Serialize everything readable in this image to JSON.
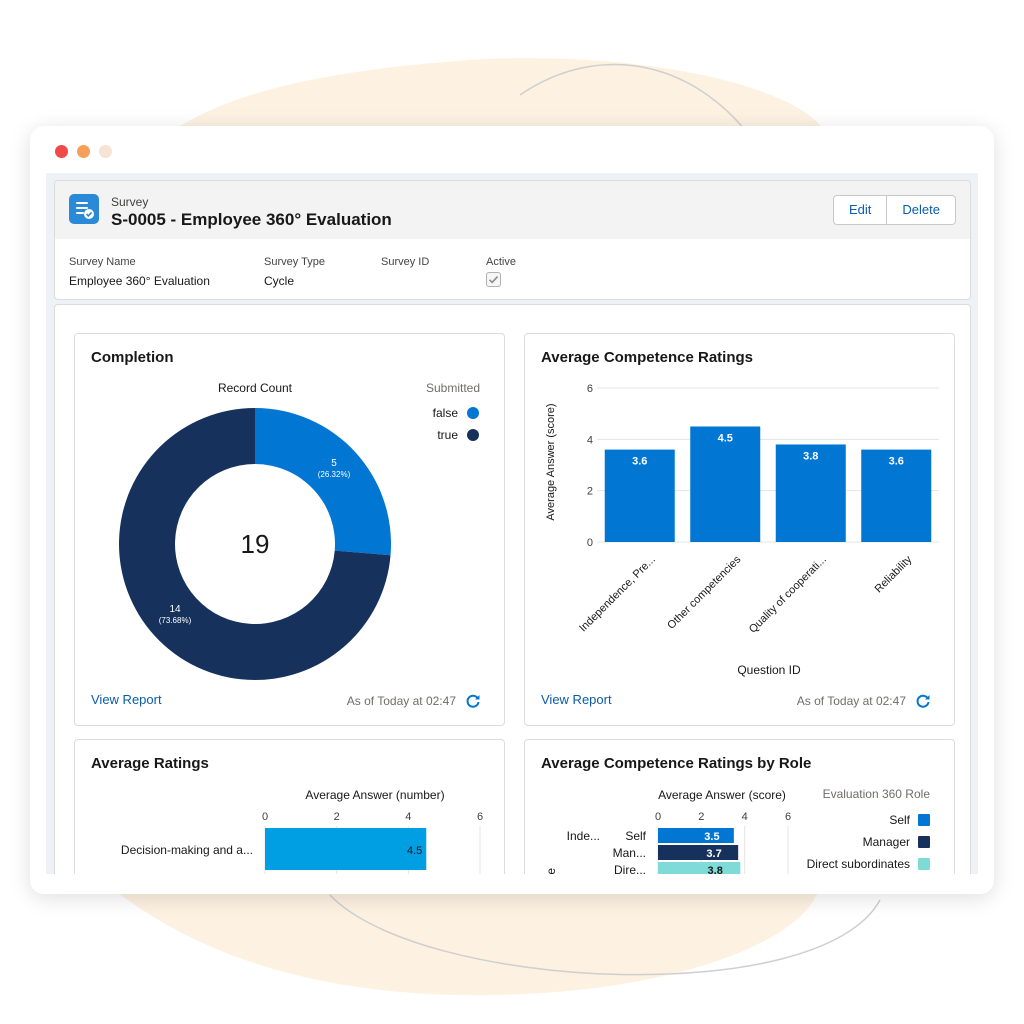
{
  "colors": {
    "accent": "#0176d3",
    "navy": "#16325c",
    "light_blue": "#009ee3",
    "teal": "#7fdbd7",
    "link": "#0b5cab",
    "blob": "#fdf3e7"
  },
  "record": {
    "kind": "Survey",
    "title": "S-0005 - Employee 360° Evaluation",
    "icon": "survey-icon",
    "buttons": {
      "edit": "Edit",
      "delete": "Delete"
    },
    "fields": [
      {
        "label": "Survey Name",
        "value": "Employee 360° Evaluation"
      },
      {
        "label": "Survey Type",
        "value": "Cycle"
      },
      {
        "label": "Survey ID",
        "value": ""
      },
      {
        "label": "Active",
        "checked": true
      }
    ]
  },
  "panels": {
    "completion": {
      "title": "Completion",
      "view_report": "View Report",
      "as_of": "As of Today at 02:47"
    },
    "competence": {
      "title": "Average Competence Ratings",
      "view_report": "View Report",
      "as_of": "As of Today at 02:47"
    },
    "ratings": {
      "title": "Average Ratings"
    },
    "by_role": {
      "title": "Average Competence Ratings by Role"
    }
  },
  "chart_data": [
    {
      "type": "pie",
      "title": "Record Count",
      "center_label": "19",
      "legend_title": "Submitted",
      "legend_position": "top-right",
      "categories": [
        "false",
        "true"
      ],
      "values": [
        5,
        14
      ],
      "labels": [
        "5",
        "14"
      ],
      "percent_labels": [
        "(26.32%)",
        "(73.68%)"
      ]
    },
    {
      "type": "bar",
      "categories": [
        "Independence, Pre...",
        "Other competencies",
        "Quality of cooperati...",
        "Reliability"
      ],
      "values": [
        3.6,
        4.5,
        3.8,
        3.6
      ],
      "value_labels": [
        "3.6",
        "4.5",
        "3.8",
        "3.6"
      ],
      "ylabel": "Average Answer (score)",
      "xlabel": "Question ID",
      "ylim": [
        0,
        6
      ],
      "yticks": [
        "0",
        "2",
        "4",
        "6"
      ],
      "grid": true
    },
    {
      "type": "bar",
      "orientation": "horizontal",
      "xlabel": "Average Answer (number)",
      "xlim": [
        0,
        6
      ],
      "xticks": [
        "0",
        "2",
        "4",
        "6"
      ],
      "categories": [
        "Decision-making and a..."
      ],
      "values": [
        4.5
      ],
      "value_labels": [
        "4.5"
      ]
    },
    {
      "type": "bar",
      "orientation": "horizontal",
      "xlabel": "Average Answer (score)",
      "xlim": [
        0,
        6
      ],
      "xticks": [
        "0",
        "2",
        "4",
        "6"
      ],
      "legend_title": "Evaluation 360 Role",
      "legend_position": "right",
      "legend": [
        "Self",
        "Manager",
        "Direct subordinates"
      ],
      "group_label": "Inde...",
      "axis_fragment": "ole",
      "rows": [
        {
          "label": "Self",
          "value": 3.5,
          "value_label": "3.5"
        },
        {
          "label": "Man...",
          "value": 3.7,
          "value_label": "3.7"
        },
        {
          "label": "Dire...",
          "value": 3.8,
          "value_label": "3.8"
        }
      ]
    }
  ]
}
